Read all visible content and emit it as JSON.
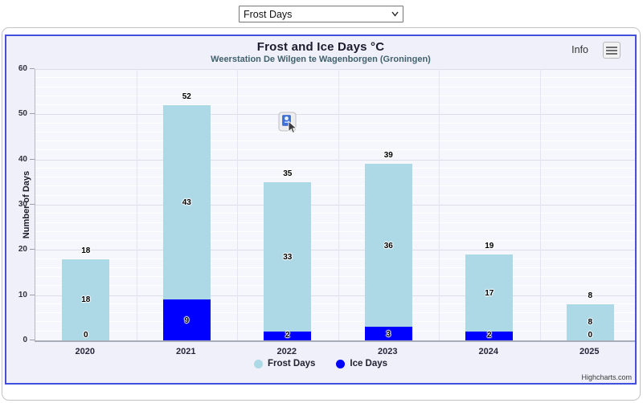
{
  "controls": {
    "chart_select_value": "Frost Days"
  },
  "header": {
    "info_label": "Info"
  },
  "credits_label": "Highcharts.com",
  "chart_data": {
    "type": "bar",
    "stacked": true,
    "title": "Frost and Ice Days °C",
    "subtitle": "Weerstation De Wilgen te Wagenborgen (Groningen)",
    "ylabel": "Number of Days",
    "xlabel": "",
    "ylim": [
      0,
      60
    ],
    "ytick_interval": 10,
    "minor_tick_interval": 2,
    "grid": true,
    "legend_position": "bottom",
    "categories": [
      "2020",
      "2021",
      "2022",
      "2023",
      "2024",
      "2025"
    ],
    "series": [
      {
        "name": "Frost Days",
        "color": "#ADD8E6",
        "values": [
          18,
          43,
          33,
          36,
          17,
          8
        ]
      },
      {
        "name": "Ice Days",
        "color": "#0000FF",
        "values": [
          0,
          9,
          2,
          3,
          2,
          0
        ]
      }
    ],
    "stack_totals": [
      18,
      52,
      35,
      39,
      19,
      8
    ]
  },
  "frame_colors": {
    "chart_border": "#4350dc",
    "chart_background": "#eff0fa"
  }
}
